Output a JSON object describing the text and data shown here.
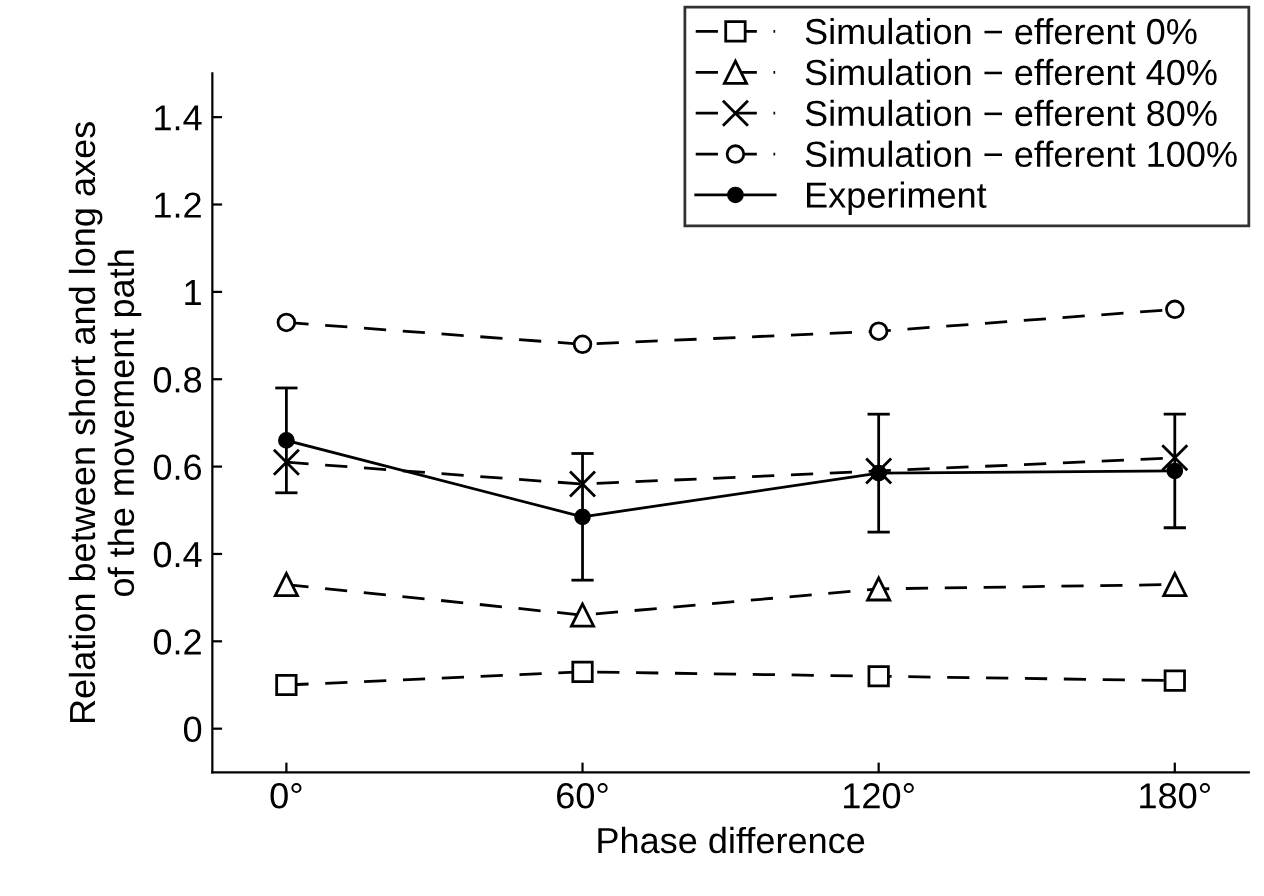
{
  "chart_data": {
    "type": "line",
    "xlabel": "Phase difference",
    "ylabel": "Relation between short and long axes\nof the movement path",
    "x": [
      0,
      60,
      120,
      180
    ],
    "xlim": [
      -15,
      195
    ],
    "ylim": [
      -0.1,
      1.5
    ],
    "xticks": [
      {
        "value": 0,
        "label": "0°"
      },
      {
        "value": 60,
        "label": "60°"
      },
      {
        "value": 120,
        "label": "120°"
      },
      {
        "value": 180,
        "label": "180°"
      }
    ],
    "yticks": [
      0,
      0.2,
      0.4,
      0.6,
      0.8,
      1,
      1.2,
      1.4
    ],
    "grid": false,
    "legend": "top right",
    "series": [
      {
        "name": "Simulation − efferent 0%",
        "color": "#000000",
        "marker": "square",
        "line_style": "dashed",
        "values": [
          0.1,
          0.13,
          0.12,
          0.11
        ]
      },
      {
        "name": "Simulation − efferent 40%",
        "color": "#000000",
        "marker": "triangle",
        "line_style": "dashed",
        "values": [
          0.33,
          0.26,
          0.32,
          0.33
        ]
      },
      {
        "name": "Simulation − efferent 80%",
        "color": "#000000",
        "marker": "cross",
        "line_style": "dashed",
        "values": [
          0.61,
          0.56,
          0.59,
          0.62
        ]
      },
      {
        "name": "Simulation − efferent 100%",
        "color": "#000000",
        "marker": "circle",
        "line_style": "dashed",
        "values": [
          0.93,
          0.88,
          0.91,
          0.96
        ]
      },
      {
        "name": "Experiment",
        "color": "#000000",
        "marker": "dot",
        "line_style": "solid",
        "values": [
          0.66,
          0.485,
          0.585,
          0.59
        ],
        "errors": [
          [
            0.54,
            0.78
          ],
          [
            0.34,
            0.63
          ],
          [
            0.45,
            0.72
          ],
          [
            0.46,
            0.72
          ]
        ]
      }
    ]
  }
}
